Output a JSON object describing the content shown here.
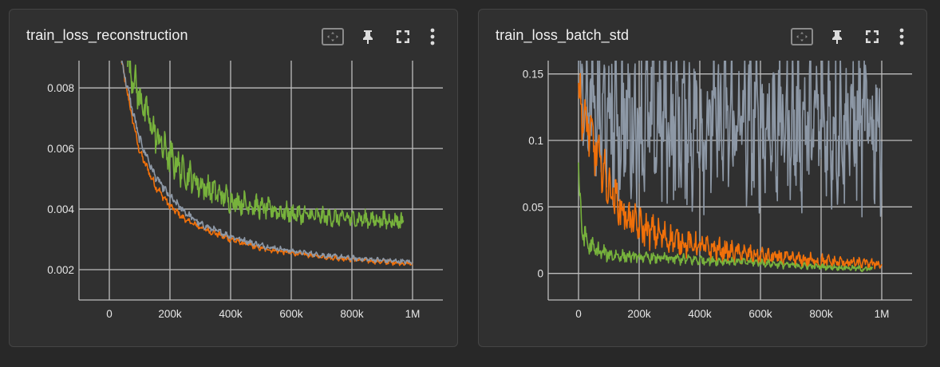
{
  "colors": {
    "background": "#282828",
    "card": "#303030",
    "grid": "#bdbdbd",
    "orange": "#f0700a",
    "green": "#77b23c",
    "gray": "#8d98a6"
  },
  "cards": [
    {
      "title": "train_loss_reconstruction",
      "tools": [
        "fit-domain-icon",
        "pin-icon",
        "fullscreen-icon",
        "more-vert-icon"
      ]
    },
    {
      "title": "train_loss_batch_std",
      "tools": [
        "fit-domain-icon",
        "pin-icon",
        "fullscreen-icon",
        "more-vert-icon"
      ]
    }
  ],
  "chart_data": [
    {
      "type": "line",
      "title": "train_loss_reconstruction",
      "x_ticks": [
        "0",
        "200k",
        "400k",
        "600k",
        "800k",
        "1M"
      ],
      "y_ticks": [
        "0.002",
        "0.004",
        "0.006",
        "0.008"
      ],
      "xlim": [
        -100000,
        1100000
      ],
      "ylim": [
        0.001,
        0.0089
      ],
      "grid": true,
      "series": [
        {
          "color": "#f0700a",
          "x": [
            40000,
            60000,
            80000,
            100000,
            150000,
            200000,
            250000,
            300000,
            400000,
            500000,
            600000,
            700000,
            800000,
            900000,
            1000000
          ],
          "y": [
            0.0089,
            0.0078,
            0.0068,
            0.0059,
            0.0048,
            0.0041,
            0.00365,
            0.0034,
            0.003,
            0.0027,
            0.00255,
            0.00243,
            0.00234,
            0.00226,
            0.0022
          ],
          "noise": [
            0.0001,
            0.0001,
            0.0001,
            0.0001,
            0.0001,
            9e-05,
            8e-05,
            8e-05,
            7e-05,
            6e-05,
            6e-05,
            6e-05,
            6e-05,
            6e-05,
            6e-05
          ]
        },
        {
          "color": "#8d98a6",
          "x": [
            40000,
            60000,
            80000,
            100000,
            150000,
            200000,
            250000,
            300000,
            400000,
            500000,
            600000,
            700000,
            800000,
            900000,
            1000000
          ],
          "y": [
            0.0089,
            0.008,
            0.0071,
            0.0063,
            0.0051,
            0.0044,
            0.0039,
            0.0035,
            0.0031,
            0.0028,
            0.00262,
            0.00248,
            0.00238,
            0.00231,
            0.00225
          ],
          "noise": [
            0.00012,
            0.00012,
            0.00012,
            0.00012,
            0.00011,
            0.0001,
            9e-05,
            8e-05,
            7e-05,
            7e-05,
            6e-05,
            6e-05,
            6e-05,
            6e-05,
            6e-05
          ]
        },
        {
          "color": "#77b23c",
          "x": [
            60000,
            100000,
            150000,
            200000,
            250000,
            300000,
            400000,
            500000,
            600000,
            700000,
            800000,
            900000,
            970000
          ],
          "y": [
            0.0089,
            0.0077,
            0.0065,
            0.0057,
            0.0052,
            0.0048,
            0.0043,
            0.00405,
            0.00385,
            0.00375,
            0.00368,
            0.00363,
            0.0036
          ],
          "noise": [
            0.0004,
            0.00045,
            0.00045,
            0.00042,
            0.0004,
            0.00036,
            0.0003,
            0.00026,
            0.00024,
            0.00022,
            0.00022,
            0.00022,
            0.00022
          ]
        }
      ]
    },
    {
      "type": "line",
      "title": "train_loss_batch_std",
      "x_ticks": [
        "0",
        "200k",
        "400k",
        "600k",
        "800k",
        "1M"
      ],
      "y_ticks": [
        "0",
        "0.05",
        "0.1",
        "0.15"
      ],
      "xlim": [
        -100000,
        1100000
      ],
      "ylim": [
        -0.02,
        0.16
      ],
      "grid": true,
      "series": [
        {
          "color": "#8d98a6",
          "x": [
            0,
            10000,
            20000,
            40000,
            60000,
            100000,
            200000,
            400000,
            600000,
            800000,
            1000000
          ],
          "y": [
            0.16,
            0.145,
            0.135,
            0.125,
            0.118,
            0.115,
            0.113,
            0.112,
            0.112,
            0.112,
            0.112
          ],
          "noise": [
            0.03,
            0.03,
            0.03,
            0.035,
            0.04,
            0.045,
            0.045,
            0.045,
            0.045,
            0.045,
            0.045
          ]
        },
        {
          "color": "#f0700a",
          "x": [
            0,
            10000,
            30000,
            60000,
            100000,
            150000,
            200000,
            300000,
            400000,
            500000,
            600000,
            700000,
            800000,
            900000,
            1000000
          ],
          "y": [
            0.14,
            0.12,
            0.11,
            0.09,
            0.065,
            0.045,
            0.035,
            0.026,
            0.02,
            0.016,
            0.013,
            0.011,
            0.009,
            0.008,
            0.007
          ],
          "noise": [
            0.015,
            0.015,
            0.015,
            0.014,
            0.013,
            0.011,
            0.01,
            0.008,
            0.007,
            0.006,
            0.005,
            0.004,
            0.004,
            0.003,
            0.003
          ]
        },
        {
          "color": "#77b23c",
          "x": [
            0,
            5000,
            10000,
            30000,
            60000,
            100000,
            200000,
            300000,
            400000,
            500000,
            600000,
            700000,
            800000,
            900000,
            970000
          ],
          "y": [
            0.08,
            0.05,
            0.035,
            0.022,
            0.017,
            0.014,
            0.012,
            0.011,
            0.01,
            0.009,
            0.008,
            0.006,
            0.005,
            0.004,
            0.003
          ],
          "noise": [
            0.01,
            0.009,
            0.008,
            0.006,
            0.005,
            0.004,
            0.003,
            0.003,
            0.003,
            0.002,
            0.002,
            0.002,
            0.0015,
            0.0015,
            0.0015
          ]
        }
      ]
    }
  ]
}
